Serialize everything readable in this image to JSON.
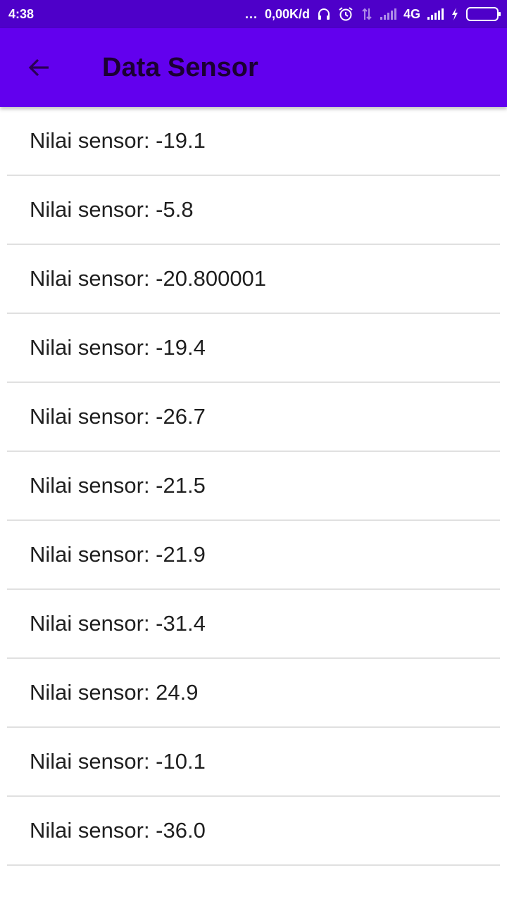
{
  "status_bar": {
    "time": "4:38",
    "dots": "...",
    "net_speed": "0,00K/d",
    "network_type": "4G",
    "icons": [
      "headphones-icon",
      "alarm-icon",
      "data-transfer-icon",
      "signal-icon",
      "signal-icon",
      "charging-icon",
      "battery-icon"
    ],
    "battery_color": "#3ad33a"
  },
  "app_bar": {
    "title": "Data Sensor",
    "back_icon": "arrow-left-icon",
    "background": "#6200ee"
  },
  "sensor_list": {
    "items": [
      {
        "label": "Nilai sensor: -19.1"
      },
      {
        "label": "Nilai sensor: -5.8"
      },
      {
        "label": "Nilai sensor: -20.800001"
      },
      {
        "label": "Nilai sensor: -19.4"
      },
      {
        "label": "Nilai sensor: -26.7"
      },
      {
        "label": "Nilai sensor: -21.5"
      },
      {
        "label": "Nilai sensor: -21.9"
      },
      {
        "label": "Nilai sensor: -31.4"
      },
      {
        "label": "Nilai sensor: 24.9"
      },
      {
        "label": "Nilai sensor: -10.1"
      },
      {
        "label": "Nilai sensor: -36.0"
      }
    ]
  }
}
